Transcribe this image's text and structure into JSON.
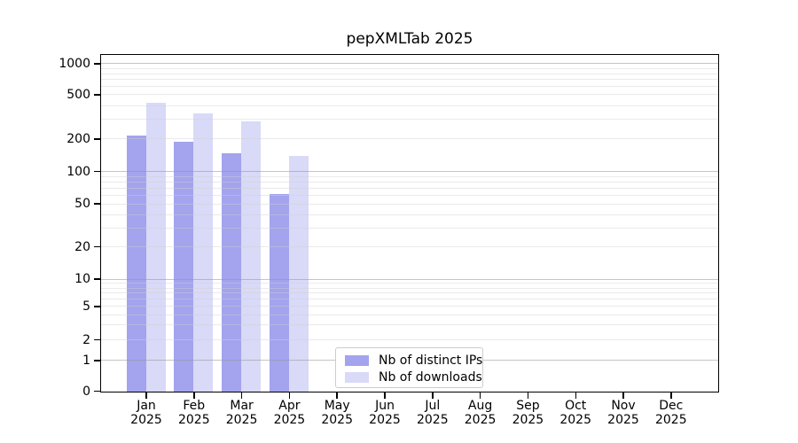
{
  "chart_data": {
    "type": "bar",
    "title": "pepXMLTab 2025",
    "year_label": "2025",
    "months": [
      "Jan",
      "Feb",
      "Mar",
      "Apr",
      "May",
      "Jun",
      "Jul",
      "Aug",
      "Sep",
      "Oct",
      "Nov",
      "Dec"
    ],
    "series": [
      {
        "name": "Nb of distinct IPs",
        "color": "#a3a3ee",
        "values": [
          215,
          190,
          150,
          62,
          0,
          0,
          0,
          0,
          0,
          0,
          0,
          0
        ]
      },
      {
        "name": "Nb of downloads",
        "color": "#d9d9f8",
        "values": [
          430,
          340,
          290,
          140,
          0,
          0,
          0,
          0,
          0,
          0,
          0,
          0
        ]
      }
    ],
    "y_axis": {
      "scale": "symlog",
      "tick_values": [
        0,
        1,
        2,
        5,
        10,
        20,
        50,
        100,
        200,
        500,
        1000
      ],
      "tick_labels": [
        "0",
        "1",
        "2",
        "5",
        "10",
        "20",
        "50",
        "100",
        "200",
        "500",
        "1000"
      ],
      "ylim": [
        0,
        1300
      ]
    },
    "x_axis": {
      "tick_labels": [
        "Jan 2025",
        "Feb 2025",
        "Mar 2025",
        "Apr 2025",
        "May 2025",
        "Jun 2025",
        "Jul 2025",
        "Aug 2025",
        "Sep 2025",
        "Oct 2025",
        "Nov 2025",
        "Dec 2025"
      ]
    },
    "legend": {
      "position": "lower center-left"
    },
    "grid": "horizontal, drawn over bars; dark lines at powers of 10, light minor log lines",
    "colors": {
      "background": "#ffffff",
      "axis": "#000000",
      "legend_border": "#cccccc"
    }
  }
}
